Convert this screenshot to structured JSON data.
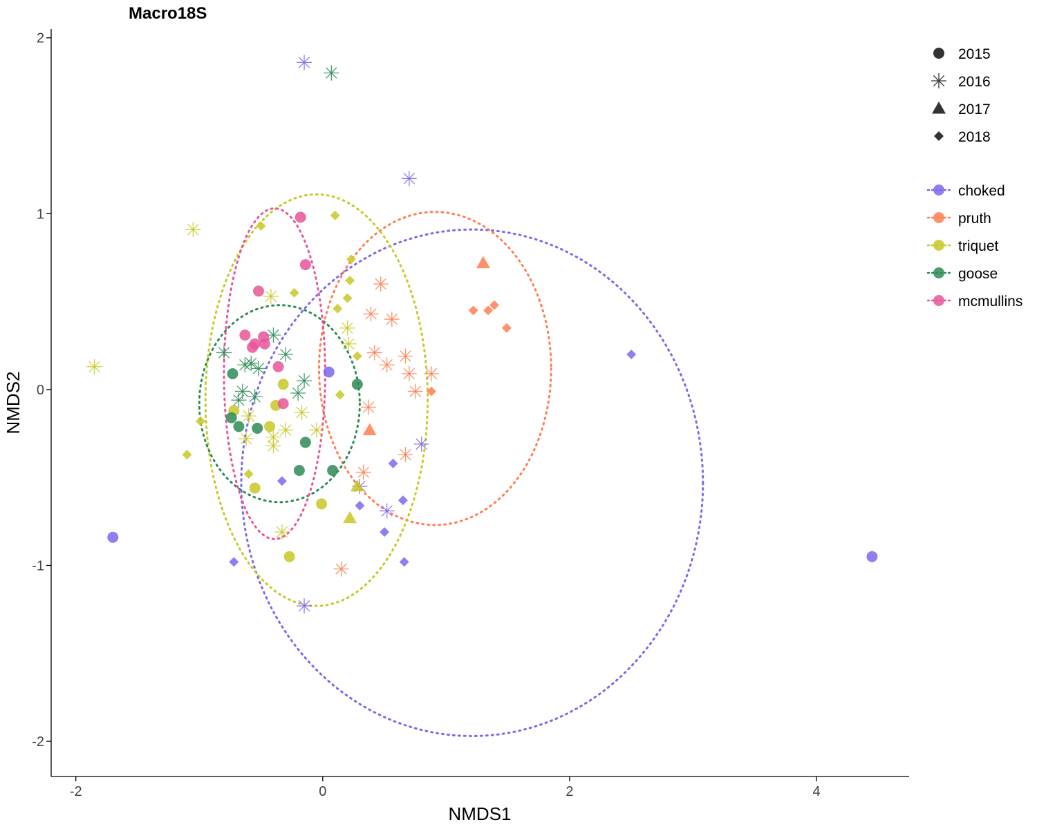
{
  "chart_data": {
    "type": "scatter",
    "title": "Macro18S",
    "xlabel": "NMDS1",
    "ylabel": "NMDS2",
    "xlim": [
      -2.2,
      4.75
    ],
    "ylim": [
      -2.2,
      2.05
    ],
    "xticks": [
      -2,
      0,
      2,
      4
    ],
    "yticks": [
      -2,
      -1,
      0,
      1,
      2
    ],
    "xtick_labels": [
      "-2",
      "0",
      "2",
      "4"
    ],
    "ytick_labels": [
      "-2",
      "-1",
      "0",
      "1",
      "2"
    ],
    "grid": false,
    "legend_position": "right",
    "shape_legend": [
      {
        "label": "2015",
        "shape": "circle"
      },
      {
        "label": "2016",
        "shape": "asterisk"
      },
      {
        "label": "2017",
        "shape": "triangle"
      },
      {
        "label": "2018",
        "shape": "diamond"
      }
    ],
    "site_legend": [
      {
        "label": "choked",
        "color": "#7B68EE"
      },
      {
        "label": "pruth",
        "color": "#FF7F50"
      },
      {
        "label": "triquet",
        "color": "#C8C826"
      },
      {
        "label": "goose",
        "color": "#2E8B57"
      },
      {
        "label": "mcmullins",
        "color": "#E8559A"
      }
    ],
    "ellipses": [
      {
        "site": "choked",
        "cx": 1.21,
        "cy": -0.53,
        "rx": 1.87,
        "ry": 1.44
      },
      {
        "site": "pruth",
        "cx": 0.91,
        "cy": 0.12,
        "rx": 0.94,
        "ry": 0.89
      },
      {
        "site": "triquet",
        "cx": -0.05,
        "cy": -0.06,
        "rx": 0.9,
        "ry": 1.17
      },
      {
        "site": "goose",
        "cx": -0.35,
        "cy": -0.08,
        "rx": 0.65,
        "ry": 0.56
      },
      {
        "site": "mcmullins",
        "cx": -0.39,
        "cy": 0.09,
        "rx": 0.41,
        "ry": 0.94
      }
    ],
    "series": [
      {
        "site": "choked",
        "points": [
          {
            "x": 0.05,
            "y": 0.1,
            "shape": "circle"
          },
          {
            "x": -1.7,
            "y": -0.84,
            "shape": "circle"
          },
          {
            "x": 4.45,
            "y": -0.95,
            "shape": "circle"
          },
          {
            "x": -0.15,
            "y": 1.86,
            "shape": "asterisk"
          },
          {
            "x": 0.7,
            "y": 1.2,
            "shape": "asterisk"
          },
          {
            "x": 0.8,
            "y": -0.31,
            "shape": "asterisk"
          },
          {
            "x": 0.52,
            "y": -0.69,
            "shape": "asterisk"
          },
          {
            "x": 0.3,
            "y": -0.55,
            "shape": "asterisk"
          },
          {
            "x": -0.15,
            "y": -1.23,
            "shape": "asterisk"
          },
          {
            "x": 2.5,
            "y": 0.2,
            "shape": "diamond"
          },
          {
            "x": 0.57,
            "y": -0.42,
            "shape": "diamond"
          },
          {
            "x": 0.65,
            "y": -0.63,
            "shape": "diamond"
          },
          {
            "x": 0.3,
            "y": -0.66,
            "shape": "diamond"
          },
          {
            "x": 0.5,
            "y": -0.81,
            "shape": "diamond"
          },
          {
            "x": 0.66,
            "y": -0.98,
            "shape": "diamond"
          },
          {
            "x": -0.72,
            "y": -0.98,
            "shape": "diamond"
          },
          {
            "x": -0.33,
            "y": -0.52,
            "shape": "diamond"
          }
        ]
      },
      {
        "site": "pruth",
        "points": [
          {
            "x": 1.3,
            "y": 0.72,
            "shape": "triangle"
          },
          {
            "x": 0.38,
            "y": -0.23,
            "shape": "triangle"
          },
          {
            "x": 0.47,
            "y": 0.6,
            "shape": "asterisk"
          },
          {
            "x": 0.39,
            "y": 0.43,
            "shape": "asterisk"
          },
          {
            "x": 0.56,
            "y": 0.4,
            "shape": "asterisk"
          },
          {
            "x": 0.42,
            "y": 0.21,
            "shape": "asterisk"
          },
          {
            "x": 0.52,
            "y": 0.14,
            "shape": "asterisk"
          },
          {
            "x": 0.67,
            "y": 0.19,
            "shape": "asterisk"
          },
          {
            "x": 0.7,
            "y": 0.09,
            "shape": "asterisk"
          },
          {
            "x": 0.88,
            "y": 0.09,
            "shape": "asterisk"
          },
          {
            "x": 0.75,
            "y": -0.01,
            "shape": "asterisk"
          },
          {
            "x": 0.37,
            "y": -0.1,
            "shape": "asterisk"
          },
          {
            "x": 0.67,
            "y": -0.37,
            "shape": "asterisk"
          },
          {
            "x": 0.33,
            "y": -0.47,
            "shape": "asterisk"
          },
          {
            "x": 0.15,
            "y": -1.02,
            "shape": "asterisk"
          },
          {
            "x": 1.22,
            "y": 0.45,
            "shape": "diamond"
          },
          {
            "x": 1.34,
            "y": 0.45,
            "shape": "diamond"
          },
          {
            "x": 1.39,
            "y": 0.48,
            "shape": "diamond"
          },
          {
            "x": 1.49,
            "y": 0.35,
            "shape": "diamond"
          },
          {
            "x": 0.88,
            "y": -0.01,
            "shape": "diamond"
          }
        ]
      },
      {
        "site": "triquet",
        "points": [
          {
            "x": -0.32,
            "y": 0.03,
            "shape": "circle"
          },
          {
            "x": -0.38,
            "y": -0.09,
            "shape": "circle"
          },
          {
            "x": -0.72,
            "y": -0.12,
            "shape": "circle"
          },
          {
            "x": -0.43,
            "y": -0.21,
            "shape": "circle"
          },
          {
            "x": -0.55,
            "y": -0.56,
            "shape": "circle"
          },
          {
            "x": -0.01,
            "y": -0.65,
            "shape": "circle"
          },
          {
            "x": -0.27,
            "y": -0.95,
            "shape": "circle"
          },
          {
            "x": 0.22,
            "y": -0.73,
            "shape": "triangle"
          },
          {
            "x": 0.28,
            "y": -0.55,
            "shape": "triangle"
          },
          {
            "x": -1.05,
            "y": 0.91,
            "shape": "asterisk"
          },
          {
            "x": -1.85,
            "y": 0.13,
            "shape": "asterisk"
          },
          {
            "x": -0.42,
            "y": 0.53,
            "shape": "asterisk"
          },
          {
            "x": 0.2,
            "y": 0.35,
            "shape": "asterisk"
          },
          {
            "x": 0.21,
            "y": 0.26,
            "shape": "asterisk"
          },
          {
            "x": -0.17,
            "y": -0.13,
            "shape": "asterisk"
          },
          {
            "x": -0.6,
            "y": -0.15,
            "shape": "asterisk"
          },
          {
            "x": -0.3,
            "y": -0.23,
            "shape": "asterisk"
          },
          {
            "x": -0.05,
            "y": -0.23,
            "shape": "asterisk"
          },
          {
            "x": -0.4,
            "y": -0.27,
            "shape": "asterisk"
          },
          {
            "x": -0.62,
            "y": -0.28,
            "shape": "asterisk"
          },
          {
            "x": -0.4,
            "y": -0.32,
            "shape": "asterisk"
          },
          {
            "x": -0.33,
            "y": -0.81,
            "shape": "asterisk"
          },
          {
            "x": -0.5,
            "y": 0.93,
            "shape": "diamond"
          },
          {
            "x": 0.1,
            "y": 0.99,
            "shape": "diamond"
          },
          {
            "x": 0.23,
            "y": 0.74,
            "shape": "diamond"
          },
          {
            "x": 0.22,
            "y": 0.62,
            "shape": "diamond"
          },
          {
            "x": -0.23,
            "y": 0.55,
            "shape": "diamond"
          },
          {
            "x": 0.2,
            "y": 0.52,
            "shape": "diamond"
          },
          {
            "x": 0.12,
            "y": 0.46,
            "shape": "diamond"
          },
          {
            "x": 0.28,
            "y": 0.19,
            "shape": "diamond"
          },
          {
            "x": 0.14,
            "y": -0.03,
            "shape": "diamond"
          },
          {
            "x": -0.99,
            "y": -0.18,
            "shape": "diamond"
          },
          {
            "x": -1.1,
            "y": -0.37,
            "shape": "diamond"
          },
          {
            "x": -0.6,
            "y": -0.48,
            "shape": "diamond"
          }
        ]
      },
      {
        "site": "goose",
        "points": [
          {
            "x": -0.73,
            "y": 0.09,
            "shape": "circle"
          },
          {
            "x": 0.28,
            "y": 0.03,
            "shape": "circle"
          },
          {
            "x": -0.74,
            "y": -0.16,
            "shape": "circle"
          },
          {
            "x": -0.68,
            "y": -0.21,
            "shape": "circle"
          },
          {
            "x": -0.53,
            "y": -0.22,
            "shape": "circle"
          },
          {
            "x": -0.14,
            "y": -0.3,
            "shape": "circle"
          },
          {
            "x": -0.19,
            "y": -0.46,
            "shape": "circle"
          },
          {
            "x": 0.08,
            "y": -0.46,
            "shape": "circle"
          },
          {
            "x": 0.07,
            "y": 1.8,
            "shape": "asterisk"
          },
          {
            "x": -0.4,
            "y": 0.31,
            "shape": "asterisk"
          },
          {
            "x": -0.8,
            "y": 0.21,
            "shape": "asterisk"
          },
          {
            "x": -0.3,
            "y": 0.2,
            "shape": "asterisk"
          },
          {
            "x": -0.63,
            "y": 0.14,
            "shape": "asterisk"
          },
          {
            "x": -0.58,
            "y": 0.15,
            "shape": "asterisk"
          },
          {
            "x": -0.52,
            "y": 0.12,
            "shape": "asterisk"
          },
          {
            "x": -0.15,
            "y": 0.05,
            "shape": "asterisk"
          },
          {
            "x": -0.65,
            "y": -0.01,
            "shape": "asterisk"
          },
          {
            "x": -0.2,
            "y": -0.02,
            "shape": "asterisk"
          },
          {
            "x": -0.55,
            "y": -0.04,
            "shape": "asterisk"
          },
          {
            "x": -0.68,
            "y": -0.06,
            "shape": "asterisk"
          }
        ]
      },
      {
        "site": "mcmullins",
        "points": [
          {
            "x": -0.18,
            "y": 0.98,
            "shape": "circle"
          },
          {
            "x": -0.14,
            "y": 0.71,
            "shape": "circle"
          },
          {
            "x": -0.52,
            "y": 0.56,
            "shape": "circle"
          },
          {
            "x": -0.63,
            "y": 0.31,
            "shape": "circle"
          },
          {
            "x": -0.48,
            "y": 0.3,
            "shape": "circle"
          },
          {
            "x": -0.55,
            "y": 0.26,
            "shape": "circle"
          },
          {
            "x": -0.47,
            "y": 0.26,
            "shape": "circle"
          },
          {
            "x": -0.57,
            "y": 0.24,
            "shape": "circle"
          },
          {
            "x": -0.36,
            "y": 0.13,
            "shape": "circle"
          },
          {
            "x": -0.32,
            "y": -0.08,
            "shape": "circle"
          }
        ]
      }
    ]
  }
}
